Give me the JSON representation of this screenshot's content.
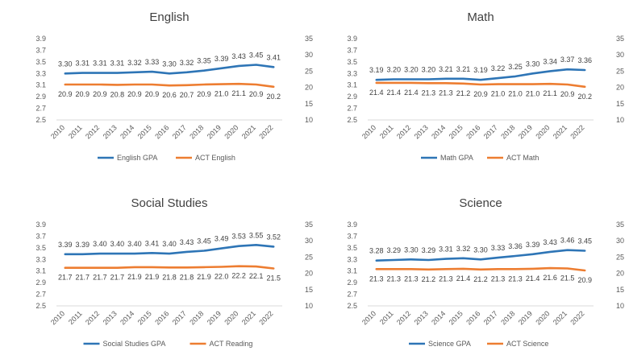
{
  "colors": {
    "gpa": "#2E75B6",
    "act": "#ED7D31",
    "text": "#404040",
    "axis": "#595959"
  },
  "chart_data": [
    {
      "type": "line",
      "title": "English",
      "x": [
        "2010",
        "2011",
        "2012",
        "2013",
        "2014",
        "2015",
        "2016",
        "2017",
        "2018",
        "2019",
        "2020",
        "2021",
        "2022"
      ],
      "series": [
        {
          "name": "English GPA",
          "axis": "left",
          "values": [
            3.3,
            3.31,
            3.31,
            3.31,
            3.32,
            3.33,
            3.3,
            3.32,
            3.35,
            3.39,
            3.43,
            3.45,
            3.41
          ],
          "labels": [
            "3.30",
            "3.31",
            "3.31",
            "3.31",
            "3.32",
            "3.33",
            "3.30",
            "3.32",
            "3.35",
            "3.39",
            "3.43",
            "3.45",
            "3.41"
          ]
        },
        {
          "name": "ACT English",
          "axis": "right",
          "values": [
            20.9,
            20.9,
            20.9,
            20.8,
            20.9,
            20.9,
            20.6,
            20.7,
            20.9,
            21.0,
            21.1,
            20.9,
            20.2
          ],
          "labels": [
            "20.9",
            "20.9",
            "20.9",
            "20.8",
            "20.9",
            "20.9",
            "20.6",
            "20.7",
            "20.9",
            "21.0",
            "21.1",
            "20.9",
            "20.2"
          ]
        }
      ],
      "y_left": {
        "ylim": [
          2.5,
          3.9
        ],
        "ticks": [
          "3.9",
          "3.7",
          "3.5",
          "3.3",
          "3.1",
          "2.9",
          "2.7",
          "2.5"
        ]
      },
      "y_right": {
        "ylim": [
          10,
          35
        ],
        "ticks": [
          "35",
          "30",
          "25",
          "20",
          "15",
          "10"
        ]
      },
      "legend": "bottom",
      "grid": false
    },
    {
      "type": "line",
      "title": "Math",
      "x": [
        "2010",
        "2011",
        "2012",
        "2013",
        "2014",
        "2015",
        "2016",
        "2017",
        "2018",
        "2019",
        "2020",
        "2021",
        "2022"
      ],
      "series": [
        {
          "name": "Math GPA",
          "axis": "left",
          "values": [
            3.19,
            3.2,
            3.2,
            3.2,
            3.21,
            3.21,
            3.19,
            3.22,
            3.25,
            3.3,
            3.34,
            3.37,
            3.36
          ],
          "labels": [
            "3.19",
            "3.20",
            "3.20",
            "3.20",
            "3.21",
            "3.21",
            "3.19",
            "3.22",
            "3.25",
            "3.30",
            "3.34",
            "3.37",
            "3.36"
          ]
        },
        {
          "name": "ACT Math",
          "axis": "right",
          "values": [
            21.4,
            21.4,
            21.4,
            21.3,
            21.3,
            21.2,
            20.9,
            21.0,
            21.0,
            21.0,
            21.1,
            20.9,
            20.2
          ],
          "labels": [
            "21.4",
            "21.4",
            "21.4",
            "21.3",
            "21.3",
            "21.2",
            "20.9",
            "21.0",
            "21.0",
            "21.0",
            "21.1",
            "20.9",
            "20.2"
          ]
        }
      ],
      "y_left": {
        "ylim": [
          2.5,
          3.9
        ],
        "ticks": [
          "3.9",
          "3.7",
          "3.5",
          "3.3",
          "3.1",
          "2.9",
          "2.7",
          "2.5"
        ]
      },
      "y_right": {
        "ylim": [
          10,
          35
        ],
        "ticks": [
          "35",
          "30",
          "25",
          "20",
          "15",
          "10"
        ]
      },
      "legend": "bottom",
      "grid": false
    },
    {
      "type": "line",
      "title": "Social Studies",
      "x": [
        "2010",
        "2011",
        "2012",
        "2013",
        "2014",
        "2015",
        "2016",
        "2017",
        "2018",
        "2019",
        "2020",
        "2021",
        "2022"
      ],
      "series": [
        {
          "name": "Social Studies GPA",
          "axis": "left",
          "values": [
            3.39,
            3.39,
            3.4,
            3.4,
            3.4,
            3.41,
            3.4,
            3.43,
            3.45,
            3.49,
            3.53,
            3.55,
            3.52
          ],
          "labels": [
            "3.39",
            "3.39",
            "3.40",
            "3.40",
            "3.40",
            "3.41",
            "3.40",
            "3.43",
            "3.45",
            "3.49",
            "3.53",
            "3.55",
            "3.52"
          ]
        },
        {
          "name": "ACT Reading",
          "axis": "right",
          "values": [
            21.7,
            21.7,
            21.7,
            21.7,
            21.9,
            21.9,
            21.8,
            21.8,
            21.9,
            22.0,
            22.2,
            22.1,
            21.5
          ],
          "labels": [
            "21.7",
            "21.7",
            "21.7",
            "21.7",
            "21.9",
            "21.9",
            "21.8",
            "21.8",
            "21.9",
            "22.0",
            "22.2",
            "22.1",
            "21.5"
          ]
        }
      ],
      "y_left": {
        "ylim": [
          2.5,
          3.9
        ],
        "ticks": [
          "3.9",
          "3.7",
          "3.5",
          "3.3",
          "3.1",
          "2.9",
          "2.7",
          "2.5"
        ]
      },
      "y_right": {
        "ylim": [
          10,
          35
        ],
        "ticks": [
          "35",
          "30",
          "25",
          "20",
          "15",
          "10"
        ]
      },
      "legend": "bottom",
      "grid": false
    },
    {
      "type": "line",
      "title": "Science",
      "x": [
        "2010",
        "2011",
        "2012",
        "2013",
        "2014",
        "2015",
        "2016",
        "2017",
        "2018",
        "2019",
        "2020",
        "2021",
        "2022"
      ],
      "series": [
        {
          "name": "Science GPA",
          "axis": "left",
          "values": [
            3.28,
            3.29,
            3.3,
            3.29,
            3.31,
            3.32,
            3.3,
            3.33,
            3.36,
            3.39,
            3.43,
            3.46,
            3.45
          ],
          "labels": [
            "3.28",
            "3.29",
            "3.30",
            "3.29",
            "3.31",
            "3.32",
            "3.30",
            "3.33",
            "3.36",
            "3.39",
            "3.43",
            "3.46",
            "3.45"
          ]
        },
        {
          "name": "ACT Science",
          "axis": "right",
          "values": [
            21.3,
            21.3,
            21.3,
            21.2,
            21.3,
            21.4,
            21.2,
            21.3,
            21.3,
            21.4,
            21.6,
            21.5,
            20.9
          ],
          "labels": [
            "21.3",
            "21.3",
            "21.3",
            "21.2",
            "21.3",
            "21.4",
            "21.2",
            "21.3",
            "21.3",
            "21.4",
            "21.6",
            "21.5",
            "20.9"
          ]
        }
      ],
      "y_left": {
        "ylim": [
          2.5,
          3.9
        ],
        "ticks": [
          "3.9",
          "3.7",
          "3.5",
          "3.3",
          "3.1",
          "2.9",
          "2.7",
          "2.5"
        ]
      },
      "y_right": {
        "ylim": [
          10,
          35
        ],
        "ticks": [
          "35",
          "30",
          "25",
          "20",
          "15",
          "10"
        ]
      },
      "legend": "bottom",
      "grid": false
    }
  ]
}
